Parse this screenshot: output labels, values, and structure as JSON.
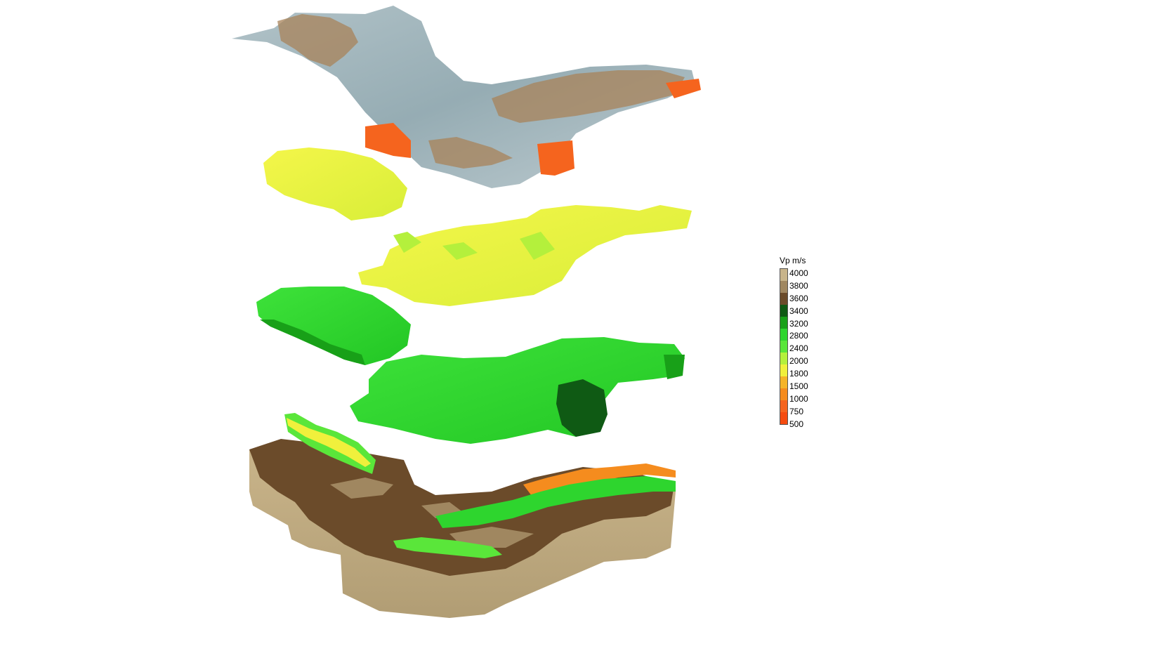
{
  "legend": {
    "title": "Vp m/s",
    "entries": [
      {
        "label": "4000",
        "color": "#c8b48a"
      },
      {
        "label": "3800",
        "color": "#a08760"
      },
      {
        "label": "3600",
        "color": "#6b4b2a"
      },
      {
        "label": "3400",
        "color": "#0f5a14"
      },
      {
        "label": "3200",
        "color": "#18a018"
      },
      {
        "label": "2800",
        "color": "#2ed52e"
      },
      {
        "label": "2400",
        "color": "#5ae63a"
      },
      {
        "label": "2000",
        "color": "#b4f03c"
      },
      {
        "label": "1800",
        "color": "#f0f03c"
      },
      {
        "label": "1500",
        "color": "#f5b428"
      },
      {
        "label": "1000",
        "color": "#f58c1e"
      },
      {
        "label": "750",
        "color": "#f5641e"
      },
      {
        "label": "500",
        "color": "#f54b0f"
      }
    ]
  },
  "layers": [
    {
      "id": "surface",
      "velocity": "500-4000",
      "colors": [
        "#8fa6ad",
        "#a58a66",
        "#f5641e"
      ]
    },
    {
      "id": "layer-yellow",
      "velocity": "1800-2000",
      "colors": [
        "#f0f03c",
        "#b4f03c"
      ]
    },
    {
      "id": "layer-green",
      "velocity": "2400-3400",
      "colors": [
        "#2ed52e",
        "#18a018",
        "#0f5a14"
      ]
    },
    {
      "id": "layer-basement",
      "velocity": "3600-4000",
      "colors": [
        "#6b4b2a",
        "#c8b48a",
        "#a08760"
      ]
    }
  ]
}
